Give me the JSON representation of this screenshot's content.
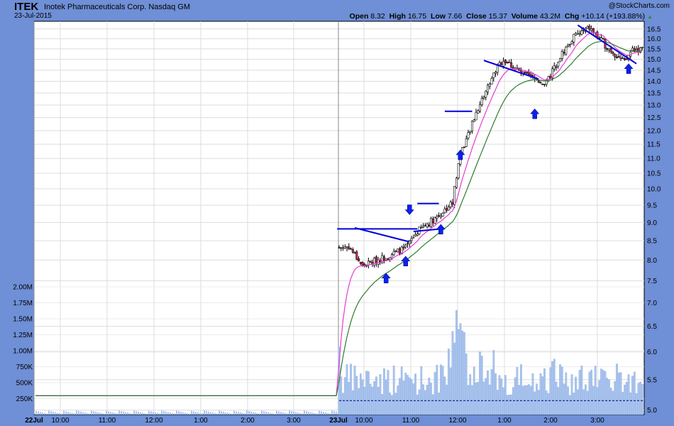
{
  "header": {
    "ticker": "ITEK",
    "company": "Inotek Pharmaceuticals Corp.  Nasdaq GM",
    "date": "23-Jul-2015",
    "watermark": "@StockCharts.com",
    "open_label": "Open",
    "open": "8.32",
    "high_label": "High",
    "high": "16.75",
    "low_label": "Low",
    "low": "7.66",
    "close_label": "Close",
    "close": "15.37",
    "volume_label": "Volume",
    "volume": "43.2M",
    "chg_label": "Chg",
    "chg": "+10.14 (+193.88%)"
  },
  "chart_data": {
    "type": "candlestick",
    "price_axis": {
      "ticks": [
        "5.0",
        "5.5",
        "6.0",
        "6.5",
        "7.0",
        "7.5",
        "8.0",
        "8.5",
        "9.0",
        "9.5",
        "10.0",
        "10.5",
        "11.0",
        "11.5",
        "12.0",
        "12.5",
        "13.0",
        "13.5",
        "14.0",
        "14.5",
        "15.0",
        "15.5",
        "16.0",
        "16.5"
      ],
      "scale": "log"
    },
    "volume_axis": {
      "ticks": [
        "250K",
        "500K",
        "750K",
        "1.00M",
        "1.25M",
        "1.50M",
        "1.75M",
        "2.00M"
      ],
      "max": 2000000
    },
    "x_ticks": [
      "22Jul",
      "10:00",
      "11:00",
      "12:00",
      "1:00",
      "2:00",
      "3:00",
      "23Jul",
      "10:00",
      "11:00",
      "12:00",
      "1:00",
      "2:00",
      "3:00"
    ],
    "colors": {
      "background": "#ffffff",
      "grid": "#dcdcdc",
      "up": "#ffffff",
      "down": "#d42a5a",
      "wick": "#000000",
      "volume": "#a9c4ee",
      "ma_short": "#e83ad6",
      "ma_long": "#2e7d2e",
      "trendline": "#0000dd",
      "arrow": "#0c21e8",
      "frame": "#6f8fd6"
    },
    "prior_day_price": 5.23,
    "day2_keypoints": [
      {
        "bar": 0,
        "price": 8.32
      },
      {
        "bar": 5,
        "price": 8.35
      },
      {
        "bar": 12,
        "price": 7.85
      },
      {
        "bar": 22,
        "price": 8.05
      },
      {
        "bar": 34,
        "price": 8.3
      },
      {
        "bar": 40,
        "price": 8.75
      },
      {
        "bar": 52,
        "price": 9.25
      },
      {
        "bar": 58,
        "price": 9.6
      },
      {
        "bar": 62,
        "price": 11.2
      },
      {
        "bar": 66,
        "price": 11.8
      },
      {
        "bar": 70,
        "price": 12.7
      },
      {
        "bar": 74,
        "price": 13.4
      },
      {
        "bar": 80,
        "price": 14.5
      },
      {
        "bar": 84,
        "price": 15.0
      },
      {
        "bar": 94,
        "price": 14.3
      },
      {
        "bar": 106,
        "price": 13.9
      },
      {
        "bar": 112,
        "price": 15.0
      },
      {
        "bar": 120,
        "price": 16.1
      },
      {
        "bar": 128,
        "price": 16.55
      },
      {
        "bar": 136,
        "price": 15.7
      },
      {
        "bar": 146,
        "price": 14.85
      },
      {
        "bar": 150,
        "price": 15.5
      },
      {
        "bar": 155,
        "price": 15.45
      }
    ],
    "trendlines": [
      {
        "from": [
          -1,
          8.82
        ],
        "to": [
          40,
          8.82
        ]
      },
      {
        "from": [
          8,
          8.85
        ],
        "to": [
          36,
          8.47
        ]
      },
      {
        "from": [
          38,
          8.75
        ],
        "to": [
          52,
          8.82
        ]
      },
      {
        "from": [
          40,
          9.55
        ],
        "to": [
          51,
          9.55
        ]
      },
      {
        "from": [
          54,
          12.75
        ],
        "to": [
          68,
          12.75
        ]
      },
      {
        "from": [
          74,
          14.95
        ],
        "to": [
          102,
          14.1
        ]
      },
      {
        "from": [
          122,
          16.7
        ],
        "to": [
          152,
          14.8
        ]
      }
    ],
    "arrows": [
      {
        "bar": 24,
        "price": 7.68,
        "dir": "up"
      },
      {
        "bar": 34,
        "price": 8.1,
        "dir": "up"
      },
      {
        "bar": 36,
        "price": 9.22,
        "dir": "down"
      },
      {
        "bar": 52,
        "price": 8.95,
        "dir": "up"
      },
      {
        "bar": 62,
        "price": 11.3,
        "dir": "up"
      },
      {
        "bar": 100,
        "price": 12.85,
        "dir": "up"
      },
      {
        "bar": 148,
        "price": 14.8,
        "dir": "up"
      }
    ],
    "volume_avg": 220000
  }
}
